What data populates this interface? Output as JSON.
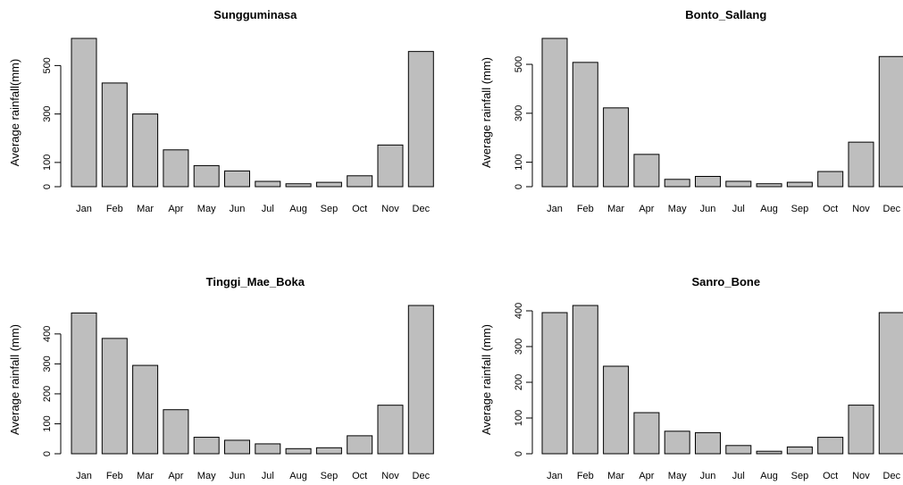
{
  "chart_data": [
    {
      "type": "bar",
      "title": "Sungguminasa",
      "ylabel": "Average rainfall(mm)",
      "xlabel": "",
      "categories": [
        "Jan",
        "Feb",
        "Mar",
        "Apr",
        "May",
        "Jun",
        "Jul",
        "Aug",
        "Sep",
        "Oct",
        "Nov",
        "Dec"
      ],
      "values": [
        612,
        428,
        300,
        152,
        87,
        65,
        22,
        12,
        18,
        45,
        172,
        558
      ],
      "yticks": [
        0,
        100,
        300,
        500
      ],
      "ylim": [
        0,
        612
      ],
      "bar_color": "#bebebe",
      "grid": false,
      "legend": "none"
    },
    {
      "type": "bar",
      "title": "Bonto_Sallang",
      "ylabel": "Average rainfall (mm)",
      "xlabel": "",
      "categories": [
        "Jan",
        "Feb",
        "Mar",
        "Apr",
        "May",
        "Jun",
        "Jul",
        "Aug",
        "Sep",
        "Oct",
        "Nov",
        "Dec"
      ],
      "values": [
        606,
        508,
        322,
        132,
        30,
        42,
        22,
        12,
        18,
        62,
        182,
        532
      ],
      "yticks": [
        0,
        100,
        300,
        500
      ],
      "ylim": [
        0,
        606
      ],
      "bar_color": "#bebebe",
      "grid": false,
      "legend": "none"
    },
    {
      "type": "bar",
      "title": "Tinggi_Mae_Boka",
      "ylabel": "Average rainfall (mm)",
      "xlabel": "",
      "categories": [
        "Jan",
        "Feb",
        "Mar",
        "Apr",
        "May",
        "Jun",
        "Jul",
        "Aug",
        "Sep",
        "Oct",
        "Nov",
        "Dec"
      ],
      "values": [
        470,
        385,
        295,
        147,
        55,
        45,
        33,
        17,
        20,
        60,
        162,
        495
      ],
      "yticks": [
        0,
        100,
        200,
        300,
        400
      ],
      "ylim": [
        0,
        495
      ],
      "bar_color": "#bebebe",
      "grid": false,
      "legend": "none"
    },
    {
      "type": "bar",
      "title": "Sanro_Bone",
      "ylabel": "Average rainfall (mm)",
      "xlabel": "",
      "categories": [
        "Jan",
        "Feb",
        "Mar",
        "Apr",
        "May",
        "Jun",
        "Jul",
        "Aug",
        "Sep",
        "Oct",
        "Nov",
        "Dec"
      ],
      "values": [
        395,
        415,
        245,
        115,
        63,
        59,
        23,
        7,
        19,
        46,
        136,
        395
      ],
      "yticks": [
        0,
        100,
        200,
        300,
        400
      ],
      "ylim": [
        0,
        415
      ],
      "bar_color": "#bebebe",
      "grid": false,
      "legend": "none"
    }
  ]
}
